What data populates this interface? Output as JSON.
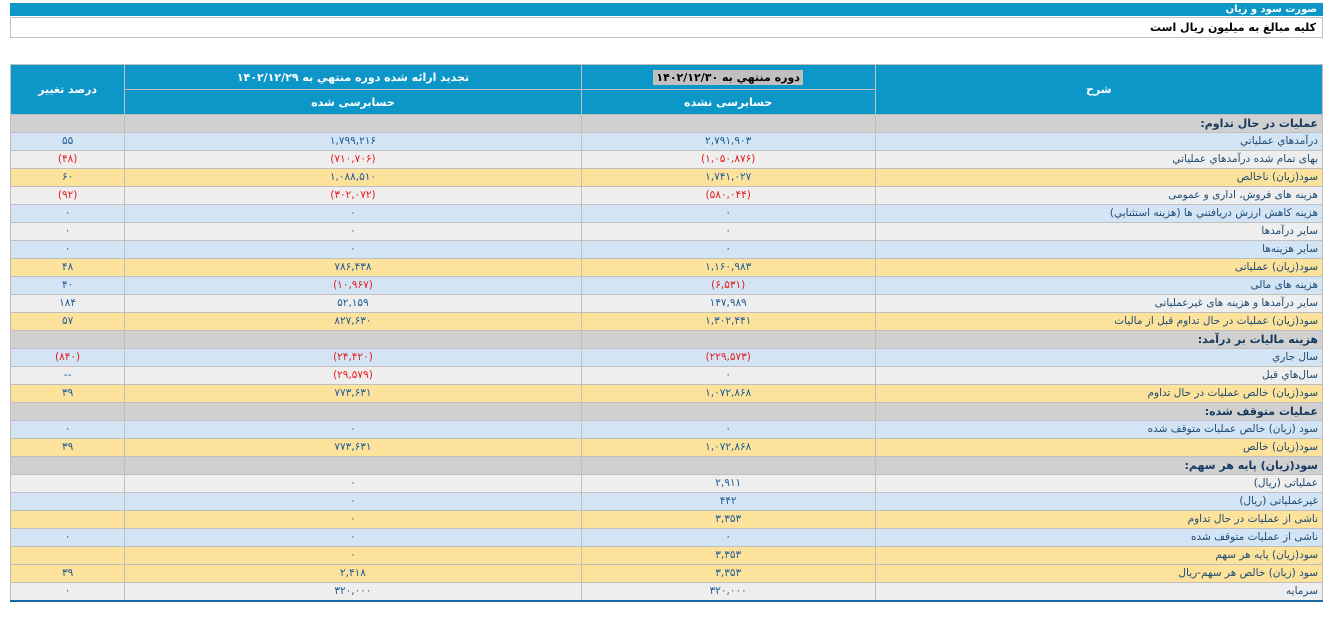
{
  "header_bars": {
    "title": "صورت سود و زیان",
    "unit_note": "کلیه مبالغ به میلیون ریال است"
  },
  "colors": {
    "header_blue": "#0d97c9",
    "row_blue": "#d3e4f5",
    "row_gray": "#eeeeee",
    "row_yellow": "#fde29c",
    "section_gray": "#d0d0d0",
    "negative_red": "#e51c1c",
    "selected_highlight": "#c0c0c0",
    "table_bottom_border": "#1769a0"
  },
  "table": {
    "columns": {
      "description": "شرح",
      "current_period": "دوره منتهي به ۱۴۰۲/۱۲/۳۰",
      "current_audit": "حسابرسی نشده",
      "prior_period": "تجدید ارائه شده دوره منتهي به ۱۴۰۲/۱۲/۲۹",
      "prior_audit": "حسابرسی شده",
      "percent_change": "درصد تغییر"
    },
    "rows": [
      {
        "v": "section",
        "label": "عملیات در حال تداوم:",
        "cur": "",
        "pri": "",
        "chg": ""
      },
      {
        "v": "blue",
        "label": "درآمدهاي عملياتي",
        "cur": "۲,۷۹۱,۹۰۳",
        "pri": "۱,۷۹۹,۲۱۶",
        "chg": "۵۵"
      },
      {
        "v": "gray",
        "label": "بهای تمام شده درآمدهاي عملياتي",
        "cur": "(۱,۰۵۰,۸۷۶)",
        "pri": "(۷۱۰,۷۰۶)",
        "chg": "(۴۸)"
      },
      {
        "v": "yellow",
        "label": "سود(زيان) ناخالص",
        "cur": "۱,۷۴۱,۰۲۷",
        "pri": "۱,۰۸۸,۵۱۰",
        "chg": "۶۰"
      },
      {
        "v": "gray",
        "label": "هزينه های فروش، اداری و عمومی",
        "cur": "(۵۸۰,۰۴۴)",
        "pri": "(۳۰۲,۰۷۲)",
        "chg": "(۹۲)"
      },
      {
        "v": "blue",
        "label": "هزينه کاهش ارزش دريافتني ها (هزينه استثنايي)",
        "cur": "۰",
        "pri": "۰",
        "chg": "۰"
      },
      {
        "v": "gray",
        "label": "سایر درآمدها",
        "cur": "۰",
        "pri": "۰",
        "chg": "۰"
      },
      {
        "v": "blue",
        "label": "سایر هزینه‌ها",
        "cur": "۰",
        "pri": "۰",
        "chg": "۰"
      },
      {
        "v": "yellow",
        "label": "سود(زيان) عملياتی",
        "cur": "۱,۱۶۰,۹۸۳",
        "pri": "۷۸۶,۴۳۸",
        "chg": "۴۸"
      },
      {
        "v": "blue",
        "label": "هزینه های مالی",
        "cur": "(۶,۵۳۱)",
        "pri": "(۱۰,۹۶۷)",
        "chg": "۴۰"
      },
      {
        "v": "gray",
        "label": "سایر درآمدها و هزینه های غیرعملیاتی",
        "cur": "۱۴۷,۹۸۹",
        "pri": "۵۲,۱۵۹",
        "chg": "۱۸۴"
      },
      {
        "v": "yellow",
        "label": "سود(زيان) عملیات در حال تداوم قبل از مالیات",
        "cur": "۱,۳۰۲,۴۴۱",
        "pri": "۸۲۷,۶۳۰",
        "chg": "۵۷"
      },
      {
        "v": "section",
        "label": "هزینه مالیات بر درآمد:",
        "cur": "",
        "pri": "",
        "chg": ""
      },
      {
        "v": "blue",
        "label": "سال جاري",
        "cur": "(۲۲۹,۵۷۳)",
        "pri": "(۲۴,۴۲۰)",
        "chg": "(۸۴۰)"
      },
      {
        "v": "gray",
        "label": "سال‌هاي قبل",
        "cur": "۰",
        "pri": "(۲۹,۵۷۹)",
        "chg": "--"
      },
      {
        "v": "yellow",
        "label": "سود(زيان) خالص عملیات در حال تداوم",
        "cur": "۱,۰۷۲,۸۶۸",
        "pri": "۷۷۳,۶۳۱",
        "chg": "۳۹"
      },
      {
        "v": "section",
        "label": "عملیات متوقف شده:",
        "cur": "",
        "pri": "",
        "chg": ""
      },
      {
        "v": "blue",
        "label": "سود (زيان) خالص عملیات متوقف شده",
        "cur": "۰",
        "pri": "۰",
        "chg": "۰"
      },
      {
        "v": "yellow",
        "label": "سود(زيان) خالص",
        "cur": "۱,۰۷۲,۸۶۸",
        "pri": "۷۷۳,۶۳۱",
        "chg": "۳۹"
      },
      {
        "v": "section",
        "label": "سود(زيان) پایه هر سهم:",
        "cur": "",
        "pri": "",
        "chg": ""
      },
      {
        "v": "gray",
        "label": "عملیاتی (ریال)",
        "cur": "۲,۹۱۱",
        "pri": "۰",
        "chg": ""
      },
      {
        "v": "blue",
        "label": "غیرعملیاتی (ریال)",
        "cur": "۴۴۲",
        "pri": "۰",
        "chg": ""
      },
      {
        "v": "yellow",
        "label": "ناشی از عملیات در حال تداوم",
        "cur": "۳,۳۵۳",
        "pri": "۰",
        "chg": ""
      },
      {
        "v": "blue",
        "label": "ناشی از عملیات متوقف شده",
        "cur": "۰",
        "pri": "۰",
        "chg": "۰"
      },
      {
        "v": "yellow",
        "label": "سود(زيان) پایه هر سهم",
        "cur": "۳,۳۵۳",
        "pri": "۰",
        "chg": ""
      },
      {
        "v": "yellow",
        "label": "سود (زيان) خالص هر سهم-ریال",
        "cur": "۳,۳۵۳",
        "pri": "۲,۴۱۸",
        "chg": "۳۹"
      },
      {
        "v": "gray",
        "label": "سرمایه",
        "cur": "۳۲۰,۰۰۰",
        "pri": "۳۲۰,۰۰۰",
        "chg": "۰"
      }
    ]
  }
}
